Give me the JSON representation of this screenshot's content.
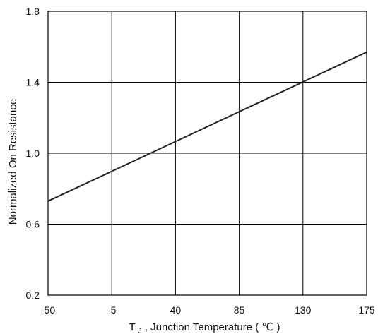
{
  "chart_data": {
    "type": "line",
    "title": "",
    "xlabel_main": "T",
    "xlabel_sub": "J",
    "xlabel_rest": " , Junction Temperature (",
    "xlabel_unit": "℃",
    "xlabel_close": ")",
    "ylabel": "Normalized On Resistance",
    "xlim": [
      -50,
      175
    ],
    "ylim": [
      0.2,
      1.8
    ],
    "x_ticks": [
      -50,
      -5,
      40,
      85,
      130,
      175
    ],
    "x_tick_labels": [
      "-50",
      "-5",
      "40",
      "85",
      "130",
      "175"
    ],
    "y_ticks": [
      0.2,
      0.6,
      1.0,
      1.4,
      1.8
    ],
    "y_tick_labels": [
      "0.2",
      "0.6",
      "1.0",
      "1.4",
      "1.8"
    ],
    "grid": true,
    "series": [
      {
        "x": [
          -50,
          175
        ],
        "y": [
          0.73,
          1.57
        ],
        "color": "#222222"
      }
    ]
  }
}
